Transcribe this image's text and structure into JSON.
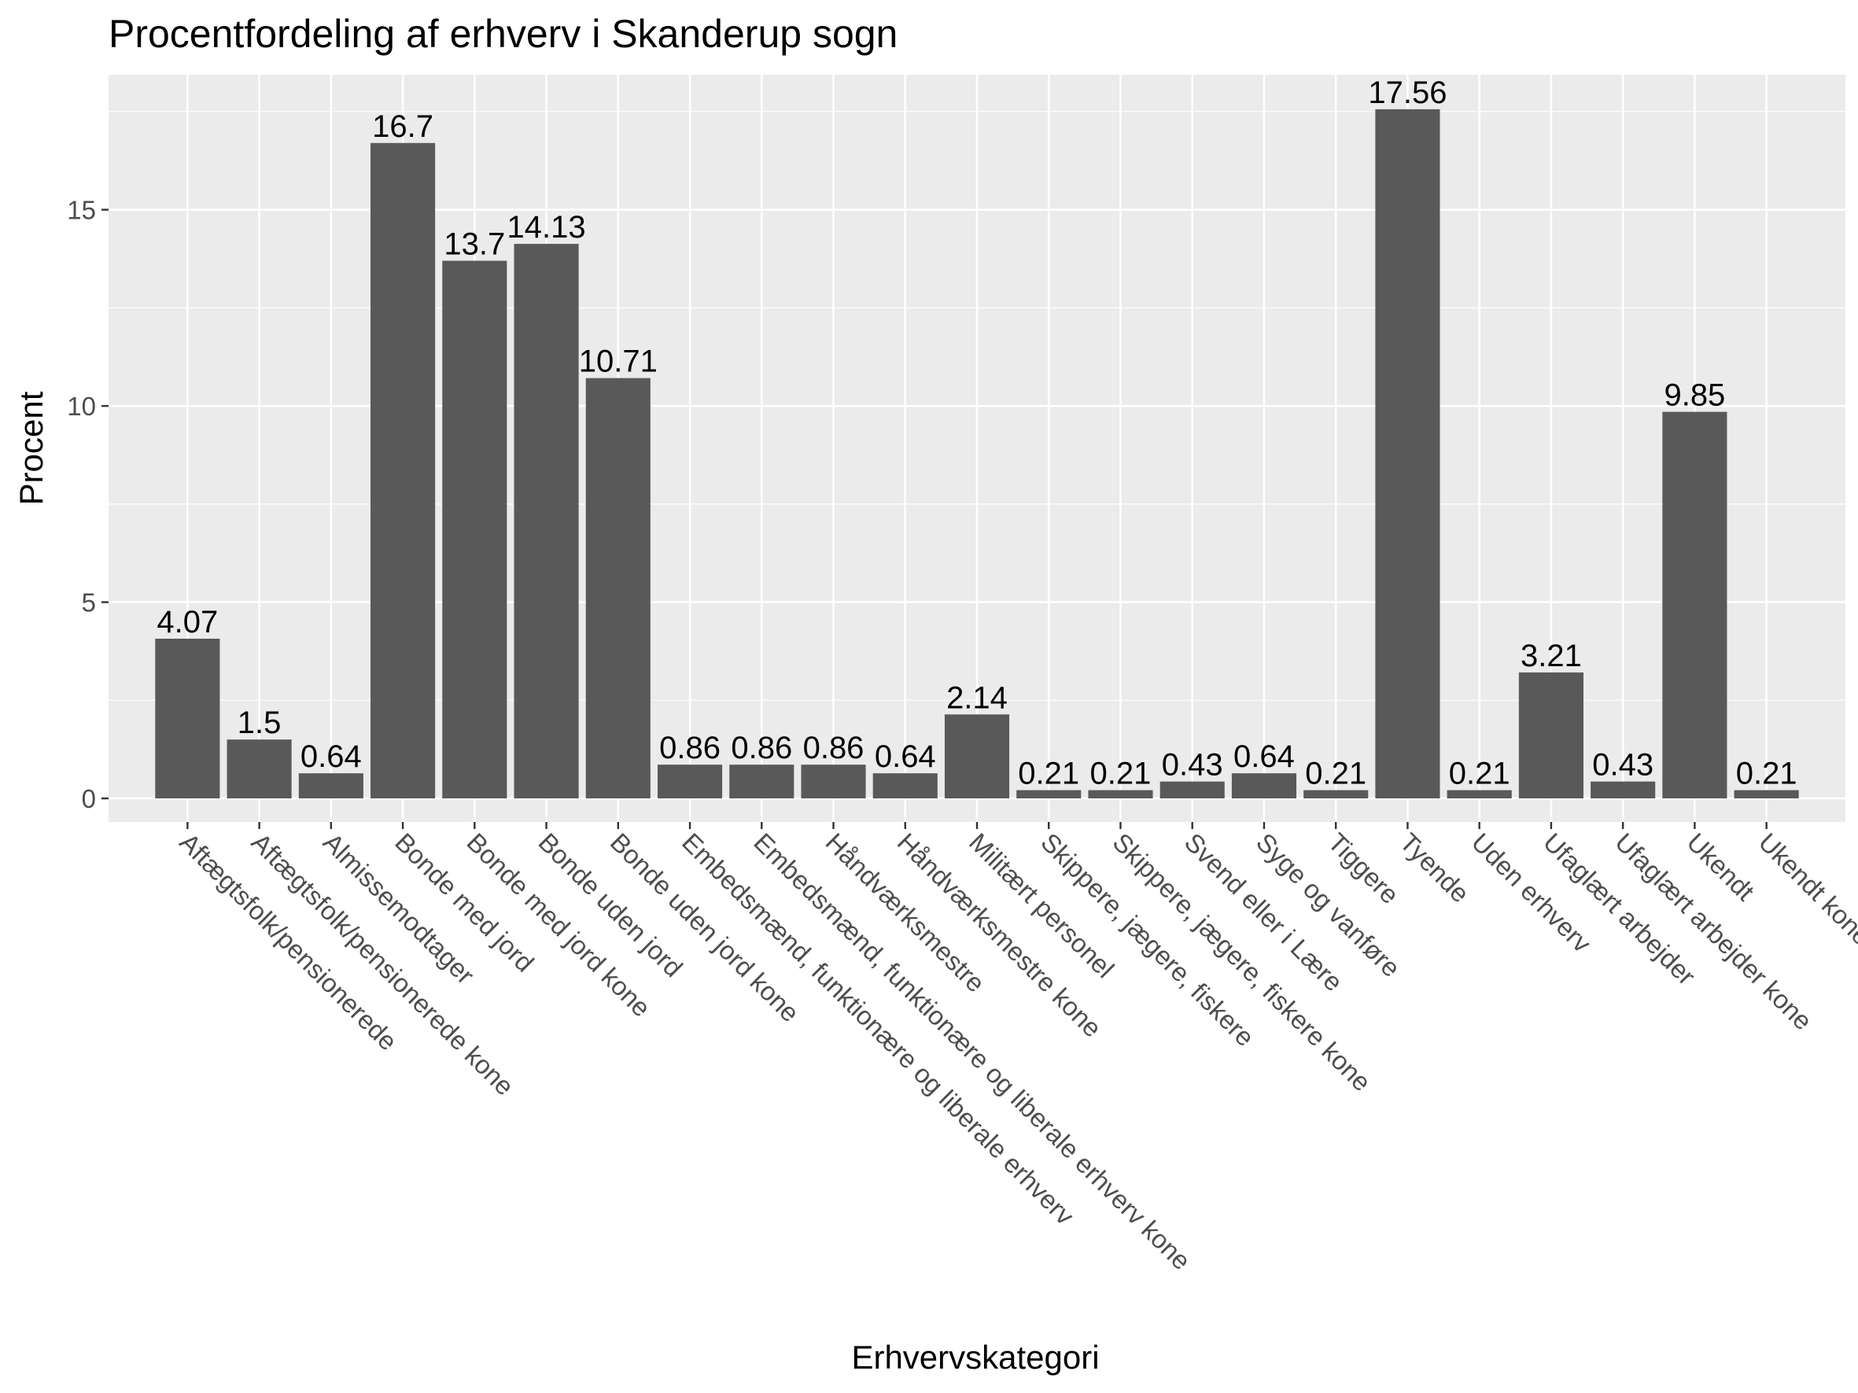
{
  "chart_data": {
    "type": "bar",
    "title": "Procentfordeling af erhverv i Skanderup sogn",
    "xlabel": "Erhvervskategori",
    "ylabel": "Procent",
    "ylim": [
      -0.6,
      18.44
    ],
    "yticks": [
      0,
      5,
      10,
      15
    ],
    "grid": true,
    "colors": {
      "panel_background": "#ebebeb",
      "grid_major": "#ffffff",
      "bar_fill": "#595959",
      "tick_text": "#4d4d4d",
      "text": "#000000"
    },
    "categories": [
      "Aftægtsfolk/pensionerede",
      "Aftægtsfolk/pensionerede kone",
      "Almissemodtager",
      "Bonde med jord",
      "Bonde med jord kone",
      "Bonde uden jord",
      "Bonde uden jord kone",
      "Embedsmænd, funktionære og liberale erhverv",
      "Embedsmænd, funktionære og liberale erhverv kone",
      "Håndværksmestre",
      "Håndværksmestre kone",
      "Militært personel",
      "Skippere, jægere, fiskere",
      "Skippere, jægere, fiskere kone",
      "Svend eller i Lære",
      "Syge og vanføre",
      "Tiggere",
      "Tyende",
      "Uden erhverv",
      "Ufaglært arbejder",
      "Ufaglært arbejder kone",
      "Ukendt",
      "Ukendt kone"
    ],
    "values": [
      4.07,
      1.5,
      0.64,
      16.7,
      13.7,
      14.13,
      10.71,
      0.86,
      0.86,
      0.86,
      0.64,
      2.14,
      0.21,
      0.21,
      0.43,
      0.64,
      0.21,
      17.56,
      0.21,
      3.21,
      0.43,
      9.85,
      0.21
    ],
    "value_labels": [
      "4.07",
      "1.5",
      "0.64",
      "16.7",
      "13.7",
      "14.13",
      "10.71",
      "0.86",
      "0.86",
      "0.86",
      "0.64",
      "2.14",
      "0.21",
      "0.21",
      "0.43",
      "0.64",
      "0.21",
      "17.56",
      "0.21",
      "3.21",
      "0.43",
      "9.85",
      "0.21"
    ]
  }
}
